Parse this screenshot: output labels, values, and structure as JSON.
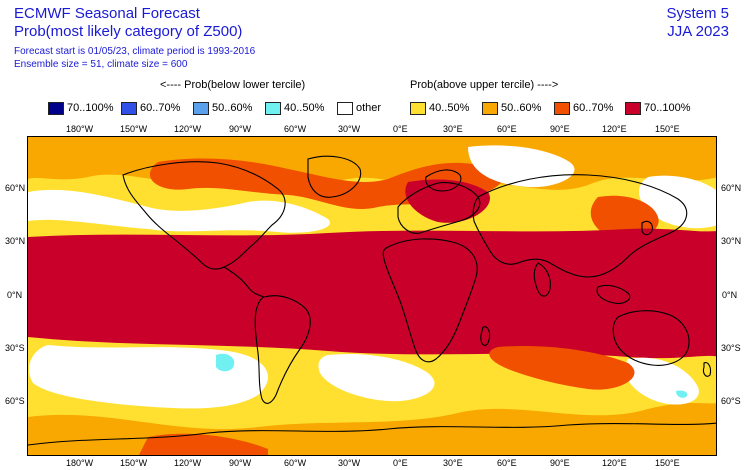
{
  "header": {
    "title": "ECMWF Seasonal Forecast",
    "subtitle": "Prob(most likely category of Z500)",
    "forecast_line": "Forecast start is 01/05/23, climate period is 1993-2016",
    "ensemble_line": "Ensemble size = 51, climate size = 600",
    "system": "System 5",
    "season": "JJA 2023"
  },
  "legend": {
    "below_heading": "<---- Prob(below lower tercile)",
    "above_heading": "Prob(above upper tercile) ---->",
    "items": [
      {
        "label": "70..100%",
        "color": "#00008b"
      },
      {
        "label": "60..70%",
        "color": "#3050e8"
      },
      {
        "label": "50..60%",
        "color": "#5aa0ec"
      },
      {
        "label": "40..50%",
        "color": "#70f0f0"
      },
      {
        "label": "other",
        "color": "#ffffff"
      },
      {
        "label": "40..50%",
        "color": "#ffe030"
      },
      {
        "label": "50..60%",
        "color": "#f8a800"
      },
      {
        "label": "60..70%",
        "color": "#f05000"
      },
      {
        "label": "70..100%",
        "color": "#c8002a"
      }
    ]
  },
  "axes": {
    "lon_labels": [
      "180°W",
      "150°W",
      "120°W",
      "90°W",
      "60°W",
      "30°W",
      "0°E",
      "30°E",
      "60°E",
      "90°E",
      "120°E",
      "150°E"
    ],
    "lat_labels": [
      "60°N",
      "30°N",
      "0°N",
      "30°S",
      "60°S"
    ]
  },
  "colors": {
    "land_outline": "#000000",
    "title_text": "#1a1ad6"
  }
}
